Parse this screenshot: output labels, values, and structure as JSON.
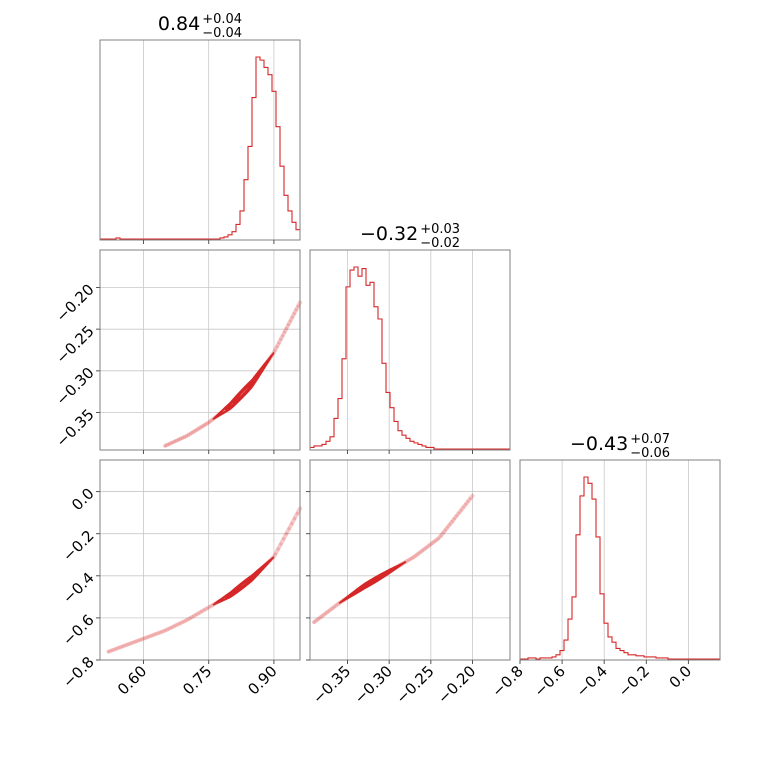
{
  "chart_data": {
    "type": "corner",
    "color": "#d62728",
    "parameters": [
      {
        "name": "p0",
        "range": [
          0.5,
          0.96
        ],
        "ticks": [
          0.6,
          0.75,
          0.9
        ],
        "tick_labels": [
          "0.60",
          "0.75",
          "0.90"
        ],
        "title": {
          "median": "0.84",
          "plus": "+0.04",
          "minus": "−0.04"
        },
        "histogram": {
          "bin_edges_start": 0.5,
          "bin_width": 0.0092,
          "counts": [
            0,
            0,
            0,
            0,
            1,
            0,
            0,
            0,
            0,
            0,
            0,
            0,
            0,
            0,
            0,
            0,
            0,
            0,
            0,
            0,
            0,
            0,
            0,
            0,
            0,
            0,
            0,
            0,
            0,
            0,
            1,
            2,
            4,
            7,
            14,
            27,
            57,
            89,
            136,
            175,
            172,
            165,
            158,
            142,
            108,
            70,
            42,
            27,
            16,
            9
          ]
        }
      },
      {
        "name": "p1",
        "range": [
          -0.395,
          -0.155
        ],
        "ticks": [
          -0.35,
          -0.3,
          -0.25,
          -0.2
        ],
        "tick_labels": [
          "−0.35",
          "−0.30",
          "−0.25",
          "−0.20"
        ],
        "title": {
          "median": "−0.32",
          "plus": "+0.03",
          "minus": "−0.02"
        },
        "histogram": {
          "bin_edges_start": -0.395,
          "bin_width": 0.0048,
          "counts": [
            1,
            2,
            2,
            3,
            5,
            8,
            20,
            33,
            59,
            106,
            117,
            119,
            113,
            118,
            107,
            109,
            93,
            85,
            56,
            37,
            27,
            18,
            12,
            9,
            7,
            5,
            4,
            3,
            2,
            1,
            1,
            0,
            0,
            0,
            0,
            0,
            0,
            0,
            0,
            0,
            0,
            0,
            0,
            0,
            0,
            0,
            0,
            0,
            0,
            0
          ]
        }
      },
      {
        "name": "p2",
        "range": [
          -0.8,
          0.15
        ],
        "ticks": [
          -0.8,
          -0.6,
          -0.4,
          -0.2,
          0.0
        ],
        "tick_labels": [
          "−0.8",
          "−0.6",
          "−0.4",
          "−0.2",
          "0.0"
        ],
        "y_tick_labels": [
          "−0.8",
          "−0.6",
          "−0.4",
          "−0.2",
          "0.0"
        ],
        "title": {
          "median": "−0.43",
          "plus": "+0.07",
          "minus": "−0.06"
        },
        "histogram": {
          "bin_edges_start": -0.8,
          "bin_width": 0.019,
          "counts": [
            0,
            0,
            1,
            1,
            0,
            1,
            1,
            1,
            2,
            4,
            8,
            18,
            38,
            59,
            118,
            155,
            173,
            167,
            152,
            116,
            62,
            34,
            21,
            16,
            10,
            8,
            6,
            4,
            4,
            3,
            3,
            2,
            2,
            2,
            1,
            1,
            1,
            0,
            0,
            0,
            0,
            0,
            0,
            0,
            0,
            0,
            0,
            0,
            0,
            0
          ]
        }
      }
    ],
    "grid": true,
    "joint_relation": {
      "p1_from_p0": {
        "x": [
          0.65,
          0.7,
          0.75,
          0.8,
          0.85,
          0.9,
          0.96
        ],
        "y": [
          -0.39,
          -0.378,
          -0.362,
          -0.342,
          -0.315,
          -0.278,
          -0.218
        ]
      },
      "p2_from_p0": {
        "x": [
          0.52,
          0.65,
          0.7,
          0.75,
          0.8,
          0.85,
          0.9,
          0.96
        ],
        "y": [
          -0.76,
          -0.66,
          -0.61,
          -0.55,
          -0.49,
          -0.41,
          -0.31,
          -0.08
        ]
      },
      "p2_from_p1": {
        "x": [
          -0.39,
          -0.36,
          -0.33,
          -0.3,
          -0.27,
          -0.24,
          -0.2
        ],
        "y": [
          -0.62,
          -0.53,
          -0.45,
          -0.38,
          -0.31,
          -0.22,
          -0.02
        ]
      }
    }
  }
}
